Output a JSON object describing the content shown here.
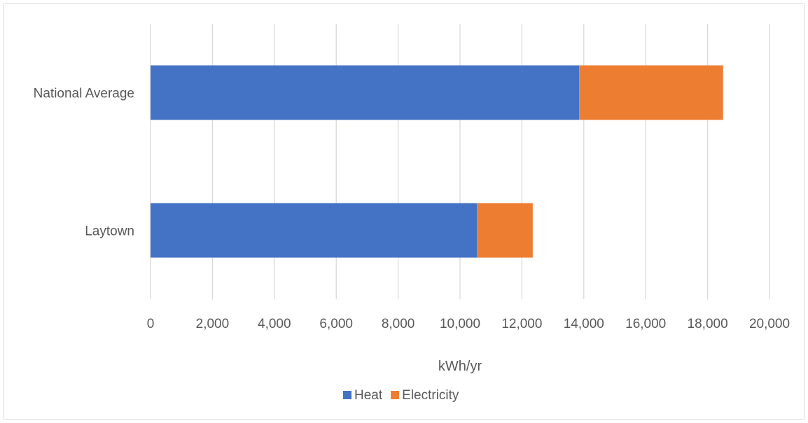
{
  "chart_data": {
    "type": "bar",
    "orientation": "horizontal",
    "stacked": true,
    "categories": [
      "National Average",
      "Laytown"
    ],
    "series": [
      {
        "name": "Heat",
        "values": [
          13850,
          10550
        ],
        "color": "#4472c4"
      },
      {
        "name": "Electricity",
        "values": [
          4650,
          1800
        ],
        "color": "#ed7d31"
      }
    ],
    "xlabel": "kWh/yr",
    "ylabel": "",
    "title": "",
    "xlim": [
      0,
      20000
    ],
    "xticks": [
      0,
      2000,
      4000,
      6000,
      8000,
      10000,
      12000,
      14000,
      16000,
      18000,
      20000
    ],
    "xtick_labels": [
      "0",
      "2,000",
      "4,000",
      "6,000",
      "8,000",
      "10,000",
      "12,000",
      "14,000",
      "16,000",
      "18,000",
      "20,000"
    ],
    "grid": true,
    "legend_position": "bottom"
  }
}
